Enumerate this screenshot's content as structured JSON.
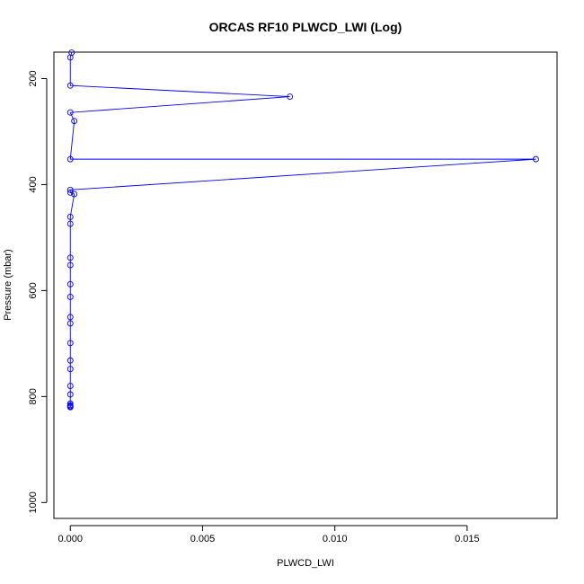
{
  "chart_data": {
    "type": "line",
    "title": "ORCAS RF10 PLWCD_LWI (Log)",
    "xlabel": "PLWCD_LWI",
    "ylabel": "Pressure (mbar)",
    "xlim": [
      -0.00062,
      0.0184
    ],
    "ylim": [
      1030,
      150
    ],
    "y_inverted": true,
    "xticks": [
      0.0,
      0.005,
      0.01,
      0.015
    ],
    "xtick_labels": [
      "0.000",
      "0.005",
      "0.010",
      "0.015"
    ],
    "yticks": [
      200,
      400,
      600,
      800,
      1000
    ],
    "ytick_labels": [
      "200",
      "400",
      "600",
      "800",
      "1000"
    ],
    "grid": false,
    "marker": "open-circle",
    "series": [
      {
        "color": "#0000ff",
        "x": [
          5e-05,
          0.0,
          0.0,
          0.0083,
          0.0,
          0.00015,
          0.0,
          0.0176,
          0.0,
          0.0,
          0.00015,
          0.0,
          0.0,
          0.0,
          0.0,
          0.0,
          0.0,
          0.0,
          0.0,
          0.0,
          0.0,
          0.0,
          0.0,
          0.0,
          0.0,
          0.0,
          0.0,
          0.0,
          0.0
        ],
        "y": [
          151,
          160,
          213,
          234,
          264,
          280,
          352,
          352,
          410,
          415,
          418,
          461,
          474,
          538,
          552,
          588,
          612,
          650,
          662,
          699,
          732,
          748,
          780,
          796,
          813,
          816,
          818,
          819,
          820
        ]
      }
    ]
  }
}
